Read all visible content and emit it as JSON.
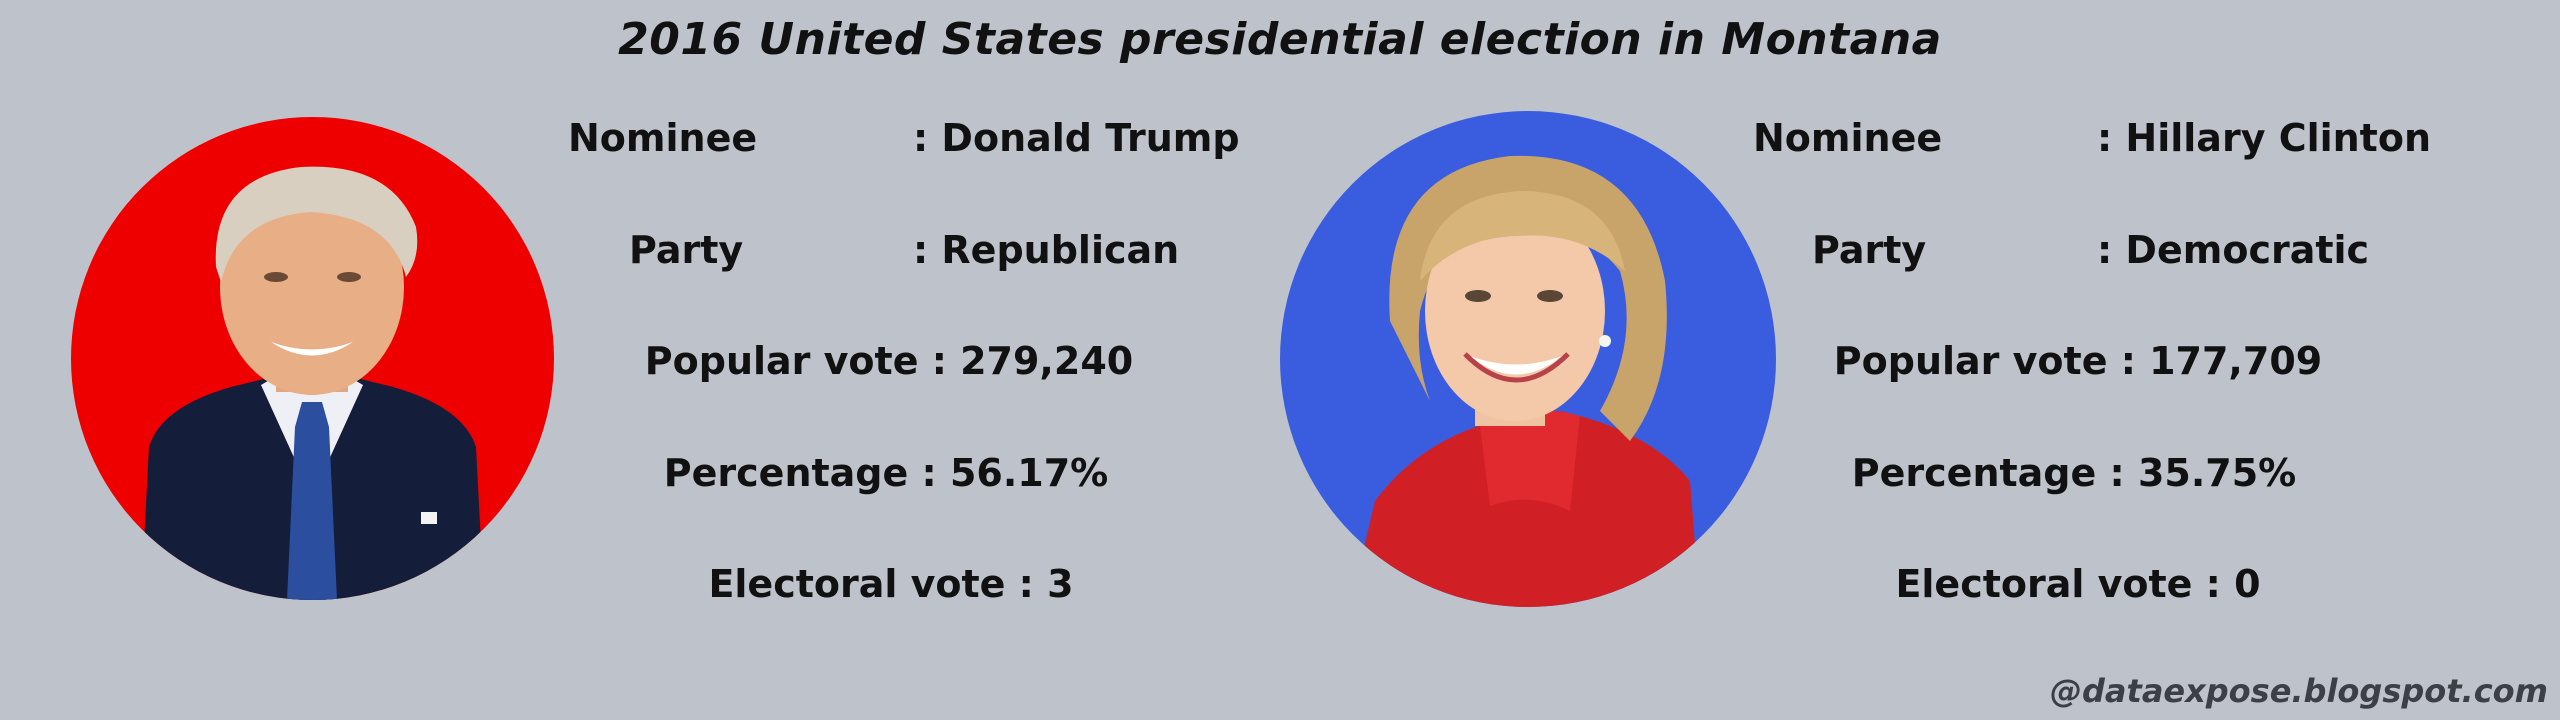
{
  "title": "2016 United States presidential election in Montana",
  "colors": {
    "background": "#bec3cb",
    "republican": "#ee0000",
    "democratic": "#3a5de0"
  },
  "candidates": [
    {
      "nominee_label": "Nominee",
      "nominee_value": ": Donald Trump",
      "party_label": "Party",
      "party_value": ": Republican",
      "popular_vote": "Popular vote : 279,240",
      "percentage": "Percentage : 56.17%",
      "electoral_vote": "Electoral vote : 3",
      "portrait_icon": "trump-portrait-icon"
    },
    {
      "nominee_label": "Nominee",
      "nominee_value": ": Hillary Clinton",
      "party_label": "Party",
      "party_value": ": Democratic",
      "popular_vote": "Popular vote : 177,709",
      "percentage": "Percentage : 35.75%",
      "electoral_vote": "Electoral vote : 0",
      "portrait_icon": "clinton-portrait-icon"
    }
  ],
  "watermark": "@dataexpose.blogspot.com"
}
